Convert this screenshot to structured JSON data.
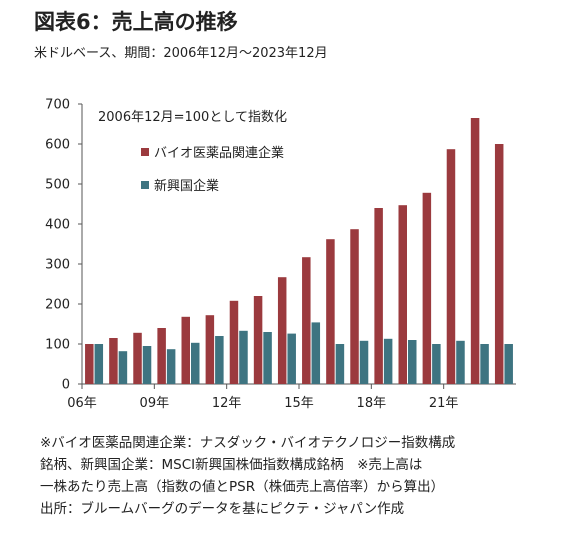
{
  "title": "図表6：売上高の推移",
  "subtitle": "米ドルベース、期間：2006年12月～2023年12月",
  "annotation": "2006年12月=100として指数化",
  "notes": [
    "※バイオ医薬品関連企業：ナスダック・バイオテクノロジー指数構成",
    "銘柄、新興国企業：MSCI新興国株価指数構成銘柄　※売上高は",
    "一株あたり売上高（指数の値とPSR（株価売上高倍率）から算出）",
    "出所：ブルームバーグのデータを基にピクテ・ジャパン作成"
  ],
  "chart_data": {
    "type": "bar",
    "categories": [
      "06年",
      "07年",
      "08年",
      "09年",
      "10年",
      "11年",
      "12年",
      "13年",
      "14年",
      "15年",
      "16年",
      "17年",
      "18年",
      "19年",
      "20年",
      "21年",
      "22年",
      "23年"
    ],
    "tick_labels": [
      "06年",
      "09年",
      "12年",
      "15年",
      "18年",
      "21年"
    ],
    "series": [
      {
        "name": "バイオ医薬品関連企業",
        "color": "#9b3a3e",
        "values": [
          100,
          115,
          128,
          140,
          168,
          172,
          208,
          220,
          267,
          317,
          362,
          387,
          440,
          447,
          478,
          587,
          665,
          600
        ]
      },
      {
        "name": "新興国企業",
        "color": "#3e7481",
        "values": [
          100,
          82,
          95,
          87,
          103,
          120,
          133,
          130,
          126,
          154,
          100,
          108,
          113,
          110,
          100,
          108,
          100,
          100
        ]
      }
    ],
    "ylim": [
      0,
      700
    ],
    "yticks": [
      0,
      100,
      200,
      300,
      400,
      500,
      600,
      700
    ],
    "legend_position": "top-left",
    "grid": false
  }
}
